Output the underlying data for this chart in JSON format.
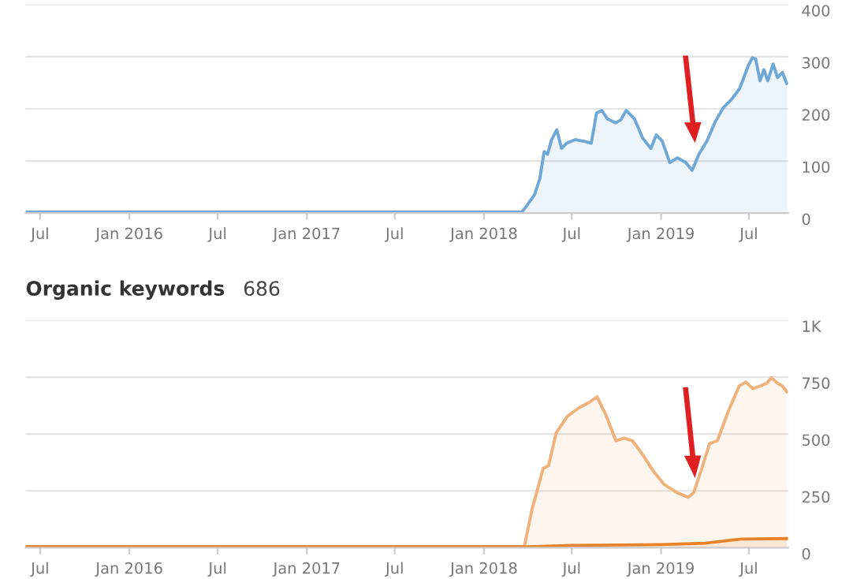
{
  "chart_data": [
    {
      "type": "area",
      "xlim": [
        "2015-06-01",
        "2019-09-20"
      ],
      "ylim": [
        0,
        400
      ],
      "yticks": [
        0,
        100,
        200,
        300,
        400
      ],
      "xticks": [
        {
          "value": "2015-07-01",
          "label": "Jul"
        },
        {
          "value": "2016-01-01",
          "label": "Jan 2016"
        },
        {
          "value": "2016-07-01",
          "label": "Jul"
        },
        {
          "value": "2017-01-01",
          "label": "Jan 2017"
        },
        {
          "value": "2017-07-01",
          "label": "Jul"
        },
        {
          "value": "2018-01-01",
          "label": "Jan 2018"
        },
        {
          "value": "2018-07-01",
          "label": "Jul"
        },
        {
          "value": "2019-01-01",
          "label": "Jan 2019"
        },
        {
          "value": "2019-07-01",
          "label": "Jul"
        }
      ],
      "grid": "y",
      "series": [
        {
          "color": "#6fa8d6",
          "x": [
            "2015-06-01",
            "2018-03-20",
            "2018-03-30",
            "2018-04-15",
            "2018-04-26",
            "2018-05-05",
            "2018-05-12",
            "2018-05-20",
            "2018-05-31",
            "2018-06-10",
            "2018-06-20",
            "2018-07-08",
            "2018-07-30",
            "2018-08-10",
            "2018-08-21",
            "2018-09-01",
            "2018-09-12",
            "2018-09-29",
            "2018-10-10",
            "2018-10-21",
            "2018-11-07",
            "2018-11-24",
            "2018-12-11",
            "2018-12-22",
            "2019-01-03",
            "2019-01-19",
            "2019-02-04",
            "2019-02-21",
            "2019-03-06",
            "2019-03-20",
            "2019-04-06",
            "2019-04-23",
            "2019-05-09",
            "2019-05-26",
            "2019-06-12",
            "2019-06-29",
            "2019-07-08",
            "2019-07-15",
            "2019-07-24",
            "2019-08-01",
            "2019-08-09",
            "2019-08-20",
            "2019-08-29",
            "2019-09-08",
            "2019-09-17"
          ],
          "values": [
            2,
            2,
            14,
            35,
            66,
            118,
            113,
            140,
            160,
            124,
            134,
            141,
            137,
            134,
            192,
            197,
            181,
            173,
            179,
            197,
            181,
            144,
            124,
            150,
            139,
            97,
            106,
            97,
            82,
            113,
            139,
            176,
            202,
            218,
            239,
            281,
            298,
            296,
            254,
            275,
            254,
            286,
            260,
            270,
            249
          ]
        }
      ]
    },
    {
      "type": "area",
      "title": "Organic keywords",
      "subtitle": "686",
      "xlim": [
        "2015-06-01",
        "2019-09-20"
      ],
      "ylim": [
        0,
        1000
      ],
      "yticks": [
        0,
        250,
        500,
        750,
        {
          "value": 1000,
          "label": "1K"
        }
      ],
      "xticks": [
        {
          "value": "2015-07-01",
          "label": "Jul"
        },
        {
          "value": "2016-01-01",
          "label": "Jan 2016"
        },
        {
          "value": "2016-07-01",
          "label": "Jul"
        },
        {
          "value": "2017-01-01",
          "label": "Jan 2017"
        },
        {
          "value": "2017-07-01",
          "label": "Jul"
        },
        {
          "value": "2018-01-01",
          "label": "Jan 2018"
        },
        {
          "value": "2018-07-01",
          "label": "Jul"
        },
        {
          "value": "2019-01-01",
          "label": "Jan 2019"
        },
        {
          "value": "2019-07-01",
          "label": "Jul"
        }
      ],
      "grid": "y",
      "series": [
        {
          "color": "#f0b27a",
          "x": [
            "2015-06-01",
            "2018-03-25",
            "2018-04-10",
            "2018-05-03",
            "2018-05-14",
            "2018-05-30",
            "2018-06-22",
            "2018-07-15",
            "2018-08-06",
            "2018-08-22",
            "2018-09-08",
            "2018-09-30",
            "2018-10-17",
            "2018-11-03",
            "2018-11-24",
            "2018-12-16",
            "2019-01-08",
            "2019-02-04",
            "2019-02-26",
            "2019-03-09",
            "2019-03-26",
            "2019-04-11",
            "2019-04-27",
            "2019-05-20",
            "2019-06-11",
            "2019-06-25",
            "2019-07-09",
            "2019-07-25",
            "2019-08-07",
            "2019-08-17",
            "2019-08-29",
            "2019-09-08",
            "2019-09-17"
          ],
          "values": [
            4,
            4,
            169,
            349,
            361,
            506,
            578,
            614,
            639,
            663,
            590,
            470,
            482,
            470,
            410,
            337,
            277,
            241,
            222,
            241,
            349,
            458,
            470,
            602,
            711,
            728,
            699,
            711,
            723,
            747,
            723,
            711,
            686
          ]
        },
        {
          "color": "#e8832a",
          "x": [
            "2015-06-01",
            "2018-04-01",
            "2018-07-01",
            "2019-01-01",
            "2019-04-01",
            "2019-06-15",
            "2019-09-17"
          ],
          "values": [
            4,
            4,
            10,
            14,
            20,
            38,
            40
          ]
        }
      ]
    }
  ]
}
